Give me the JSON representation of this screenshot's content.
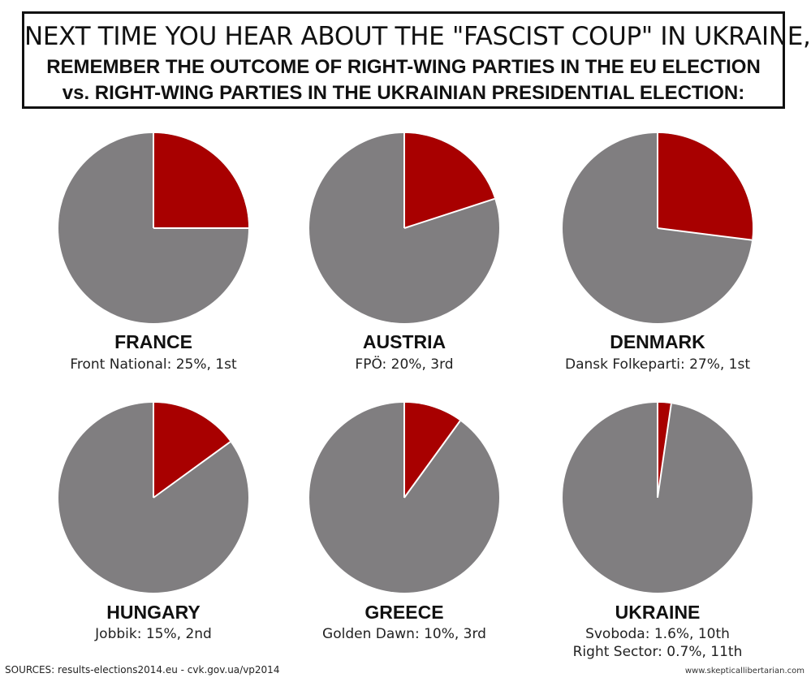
{
  "header": {
    "line1": "NEXT TIME YOU HEAR ABOUT THE \"FASCIST COUP\" IN UKRAINE,",
    "line2": "REMEMBER THE OUTCOME OF RIGHT-WING PARTIES IN THE EU ELECTION",
    "line3": "vs. RIGHT-WING PARTIES IN THE UKRAINIAN PRESIDENTIAL ELECTION:"
  },
  "colors": {
    "highlight": "#a80000",
    "rest": "#807e80",
    "divider": "#ffffff"
  },
  "chart_data": [
    {
      "type": "pie",
      "title": "FRANCE",
      "labels": [
        "Front National: 25%, 1st"
      ],
      "values": [
        25
      ]
    },
    {
      "type": "pie",
      "title": "AUSTRIA",
      "labels": [
        "FPÖ: 20%, 3rd"
      ],
      "values": [
        20
      ]
    },
    {
      "type": "pie",
      "title": "DENMARK",
      "labels": [
        "Dansk Folkeparti: 27%, 1st"
      ],
      "values": [
        27
      ]
    },
    {
      "type": "pie",
      "title": "HUNGARY",
      "labels": [
        "Jobbik: 15%, 2nd"
      ],
      "values": [
        15
      ]
    },
    {
      "type": "pie",
      "title": "GREECE",
      "labels": [
        "Golden Dawn: 10%, 3rd"
      ],
      "values": [
        10
      ]
    },
    {
      "type": "pie",
      "title": "UKRAINE",
      "labels": [
        "Svoboda: 1.6%, 10th",
        "Right Sector: 0.7%, 11th"
      ],
      "values": [
        1.6,
        0.7
      ]
    }
  ],
  "footer": {
    "sources": "SOURCES: results-elections2014.eu  -  cvk.gov.ua/vp2014",
    "credit": "www.skepticallibertarian.com"
  }
}
